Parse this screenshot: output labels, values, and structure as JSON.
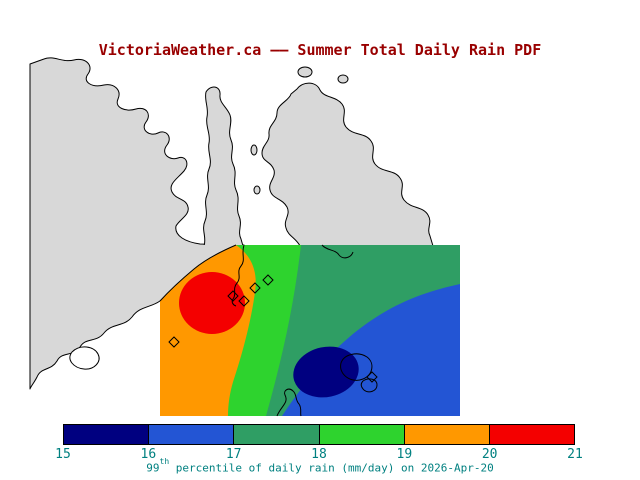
{
  "title": "VictoriaWeather.ca –– Summer Total Daily Rain PDF",
  "caption": {
    "value_prefix": "99",
    "value_sup": "th",
    "value_rest": " percentile of daily rain (mm/day) on 2026-Apr-20"
  },
  "colors": {
    "title_color": "#990000",
    "label_color": "#008080",
    "land": "#d8d8d8",
    "water": "#ffffff",
    "coastline": "#000000"
  },
  "colorbar": {
    "orientation": "horizontal",
    "ticks": [
      "15",
      "16",
      "17",
      "18",
      "19",
      "20",
      "21"
    ],
    "segments": [
      {
        "range": "15-16",
        "color": "#000080"
      },
      {
        "range": "16-17",
        "color": "#2355d4"
      },
      {
        "range": "17-18",
        "color": "#2f9e64"
      },
      {
        "range": "18-19",
        "color": "#2ed32e"
      },
      {
        "range": "19-20",
        "color": "#ff9800"
      },
      {
        "range": "20-21",
        "color": "#f40000"
      }
    ]
  },
  "chart_data": {
    "type": "heatmap",
    "title": "VictoriaWeather.ca –– Summer Total Daily Rain PDF",
    "variable": "99th percentile of daily rain",
    "units": "mm/day",
    "date": "2026-Apr-20",
    "levels": [
      15,
      16,
      17,
      18,
      19,
      20,
      21
    ],
    "level_colors": [
      "#000080",
      "#2355d4",
      "#2f9e64",
      "#2ed32e",
      "#ff9800",
      "#f40000"
    ],
    "colorbar_orientation": "horizontal",
    "legend_position": "bottom",
    "pattern": [
      {
        "band": "20-21",
        "color_name": "red",
        "color": "#f40000",
        "location": "small maximum core in the west of the shaded domain"
      },
      {
        "band": "19-20",
        "color_name": "orange",
        "color": "#ff9800",
        "location": "western margin surrounding the red core, down to the southwest corner"
      },
      {
        "band": "18-19",
        "color_name": "bright green",
        "color": "#2ed32e",
        "location": "narrow north-south band east of the orange region"
      },
      {
        "band": "17-18",
        "color_name": "sea green",
        "color": "#2f9e64",
        "location": "broad diagonal band across the centre and northeast of the domain"
      },
      {
        "band": "16-17",
        "color_name": "blue",
        "color": "#2355d4",
        "location": "southeastern part of the domain"
      },
      {
        "band": "15-16",
        "color_name": "navy",
        "color": "#000080",
        "location": "small minimum core in the southeast"
      }
    ],
    "station_marker_count": 6
  }
}
